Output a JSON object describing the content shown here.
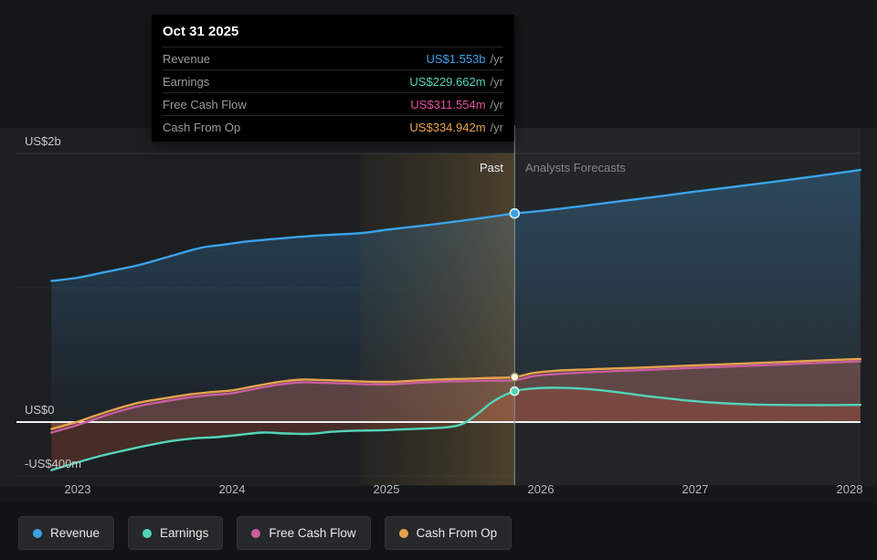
{
  "tooltip": {
    "title": "Oct 31 2025",
    "rows": [
      {
        "label": "Revenue",
        "value": "US$1.553b",
        "suffix": "/yr",
        "color": "#3aa2e8"
      },
      {
        "label": "Earnings",
        "value": "US$229.662m",
        "suffix": "/yr",
        "color": "#53d3b9"
      },
      {
        "label": "Free Cash Flow",
        "value": "US$311.554m",
        "suffix": "/yr",
        "color": "#e0559e"
      },
      {
        "label": "Cash From Op",
        "value": "US$334.942m",
        "suffix": "/yr",
        "color": "#eca24d"
      }
    ]
  },
  "annotations": {
    "past_label": "Past",
    "forecast_label": "Analysts Forecasts"
  },
  "y_axis": {
    "labels": [
      {
        "text": "US$2b",
        "value": 2000
      },
      {
        "text": "US$0",
        "value": 0
      },
      {
        "text": "-US$400m",
        "value": -400
      }
    ]
  },
  "x_axis": {
    "labels": [
      {
        "text": "2023",
        "year": 2023
      },
      {
        "text": "2024",
        "year": 2024
      },
      {
        "text": "2025",
        "year": 2025
      },
      {
        "text": "2026",
        "year": 2026
      },
      {
        "text": "2027",
        "year": 2027
      },
      {
        "text": "2028",
        "year": 2028
      }
    ]
  },
  "legend": {
    "items": [
      {
        "label": "Revenue",
        "color": "#3aa2e8"
      },
      {
        "label": "Earnings",
        "color": "#53d3b9"
      },
      {
        "label": "Free Cash Flow",
        "color": "#c95d9f"
      },
      {
        "label": "Cash From Op",
        "color": "#e5a24f"
      }
    ]
  },
  "chart_data": {
    "type": "line",
    "x_unit": "calendar_year",
    "x_range": [
      2022.83,
      2028.07
    ],
    "y_unit": "US$ millions",
    "y_range": [
      -400,
      2000
    ],
    "gridlines": [
      2000,
      1000,
      0,
      -400
    ],
    "divider_x": 2025.83,
    "divider_date": "Oct 31 2025",
    "highlight_band": [
      2024.83,
      2025.83
    ],
    "series": [
      {
        "name": "Revenue",
        "color": "#3aa2e8",
        "fill": "gradient-blue",
        "points": [
          [
            2022.83,
            1050
          ],
          [
            2023,
            1075
          ],
          [
            2023.2,
            1122
          ],
          [
            2023.4,
            1170
          ],
          [
            2023.6,
            1235
          ],
          [
            2023.8,
            1298
          ],
          [
            2023.95,
            1322
          ],
          [
            2024.1,
            1345
          ],
          [
            2024.3,
            1366
          ],
          [
            2024.5,
            1385
          ],
          [
            2024.7,
            1398
          ],
          [
            2024.85,
            1408
          ],
          [
            2025,
            1432
          ],
          [
            2025.2,
            1458
          ],
          [
            2025.4,
            1486
          ],
          [
            2025.6,
            1516
          ],
          [
            2025.83,
            1553
          ],
          [
            2026,
            1572
          ],
          [
            2026.25,
            1606
          ],
          [
            2026.5,
            1642
          ],
          [
            2026.75,
            1678
          ],
          [
            2027,
            1716
          ],
          [
            2027.25,
            1752
          ],
          [
            2027.5,
            1788
          ],
          [
            2027.75,
            1826
          ],
          [
            2028,
            1866
          ],
          [
            2028.07,
            1878
          ]
        ]
      },
      {
        "name": "Cash From Op",
        "color": "#e5a24f",
        "fill": "rgba(226,158,74,0.20)",
        "points": [
          [
            2022.83,
            -52
          ],
          [
            2023,
            2
          ],
          [
            2023.1,
            42
          ],
          [
            2023.25,
            98
          ],
          [
            2023.4,
            145
          ],
          [
            2023.55,
            175
          ],
          [
            2023.7,
            202
          ],
          [
            2023.85,
            222
          ],
          [
            2024,
            236
          ],
          [
            2024.15,
            268
          ],
          [
            2024.3,
            298
          ],
          [
            2024.45,
            316
          ],
          [
            2024.6,
            312
          ],
          [
            2024.75,
            306
          ],
          [
            2024.9,
            300
          ],
          [
            2025.05,
            300
          ],
          [
            2025.2,
            310
          ],
          [
            2025.35,
            318
          ],
          [
            2025.5,
            322
          ],
          [
            2025.65,
            328
          ],
          [
            2025.83,
            334.942
          ],
          [
            2025.95,
            365
          ],
          [
            2026.1,
            382
          ],
          [
            2026.3,
            392
          ],
          [
            2026.5,
            400
          ],
          [
            2026.75,
            410
          ],
          [
            2027,
            422
          ],
          [
            2027.25,
            433
          ],
          [
            2027.5,
            444
          ],
          [
            2027.75,
            456
          ],
          [
            2028.07,
            470
          ]
        ]
      },
      {
        "name": "Free Cash Flow",
        "color": "#c95d9f",
        "fill": "rgba(205,90,150,0.16)",
        "points": [
          [
            2022.83,
            -78
          ],
          [
            2023,
            -22
          ],
          [
            2023.1,
            18
          ],
          [
            2023.25,
            74
          ],
          [
            2023.4,
            120
          ],
          [
            2023.55,
            152
          ],
          [
            2023.7,
            180
          ],
          [
            2023.85,
            200
          ],
          [
            2024,
            215
          ],
          [
            2024.15,
            248
          ],
          [
            2024.3,
            278
          ],
          [
            2024.45,
            296
          ],
          [
            2024.6,
            292
          ],
          [
            2024.75,
            287
          ],
          [
            2024.9,
            281
          ],
          [
            2025.05,
            282
          ],
          [
            2025.2,
            292
          ],
          [
            2025.35,
            300
          ],
          [
            2025.5,
            304
          ],
          [
            2025.65,
            308
          ],
          [
            2025.83,
            311.554
          ],
          [
            2025.95,
            342
          ],
          [
            2026.1,
            358
          ],
          [
            2026.3,
            370
          ],
          [
            2026.5,
            380
          ],
          [
            2026.75,
            392
          ],
          [
            2027,
            404
          ],
          [
            2027.25,
            415
          ],
          [
            2027.5,
            426
          ],
          [
            2027.75,
            438
          ],
          [
            2028.07,
            452
          ]
        ]
      },
      {
        "name": "Earnings",
        "color": "#53d3b9",
        "fill": "rgba(198,82,58,0.26)",
        "points": [
          [
            2022.83,
            -358
          ],
          [
            2023,
            -300
          ],
          [
            2023.15,
            -252
          ],
          [
            2023.3,
            -212
          ],
          [
            2023.45,
            -175
          ],
          [
            2023.6,
            -142
          ],
          [
            2023.75,
            -122
          ],
          [
            2023.9,
            -112
          ],
          [
            2024.05,
            -95
          ],
          [
            2024.2,
            -78
          ],
          [
            2024.35,
            -85
          ],
          [
            2024.5,
            -88
          ],
          [
            2024.65,
            -72
          ],
          [
            2024.8,
            -64
          ],
          [
            2024.95,
            -62
          ],
          [
            2025.1,
            -55
          ],
          [
            2025.25,
            -48
          ],
          [
            2025.4,
            -38
          ],
          [
            2025.5,
            -10
          ],
          [
            2025.6,
            70
          ],
          [
            2025.7,
            160
          ],
          [
            2025.83,
            229.662
          ],
          [
            2025.95,
            250
          ],
          [
            2026.1,
            256
          ],
          [
            2026.3,
            246
          ],
          [
            2026.5,
            222
          ],
          [
            2026.7,
            192
          ],
          [
            2026.9,
            166
          ],
          [
            2027.1,
            146
          ],
          [
            2027.3,
            134
          ],
          [
            2027.5,
            128
          ],
          [
            2027.8,
            126
          ],
          [
            2028.07,
            128
          ]
        ]
      }
    ],
    "markers": [
      {
        "series": "Revenue",
        "x": 2025.83,
        "y": 1553,
        "fill": "#3aa2e8",
        "stroke": "#d5ebfa"
      },
      {
        "series": "Cash From Op",
        "x": 2025.83,
        "y": 334.942,
        "fill": "#faf4e2",
        "stroke": "#8d7b49"
      },
      {
        "series": "Earnings",
        "x": 2025.83,
        "y": 229.662,
        "fill": "#53d3b9",
        "stroke": "#dff7f0"
      }
    ]
  }
}
